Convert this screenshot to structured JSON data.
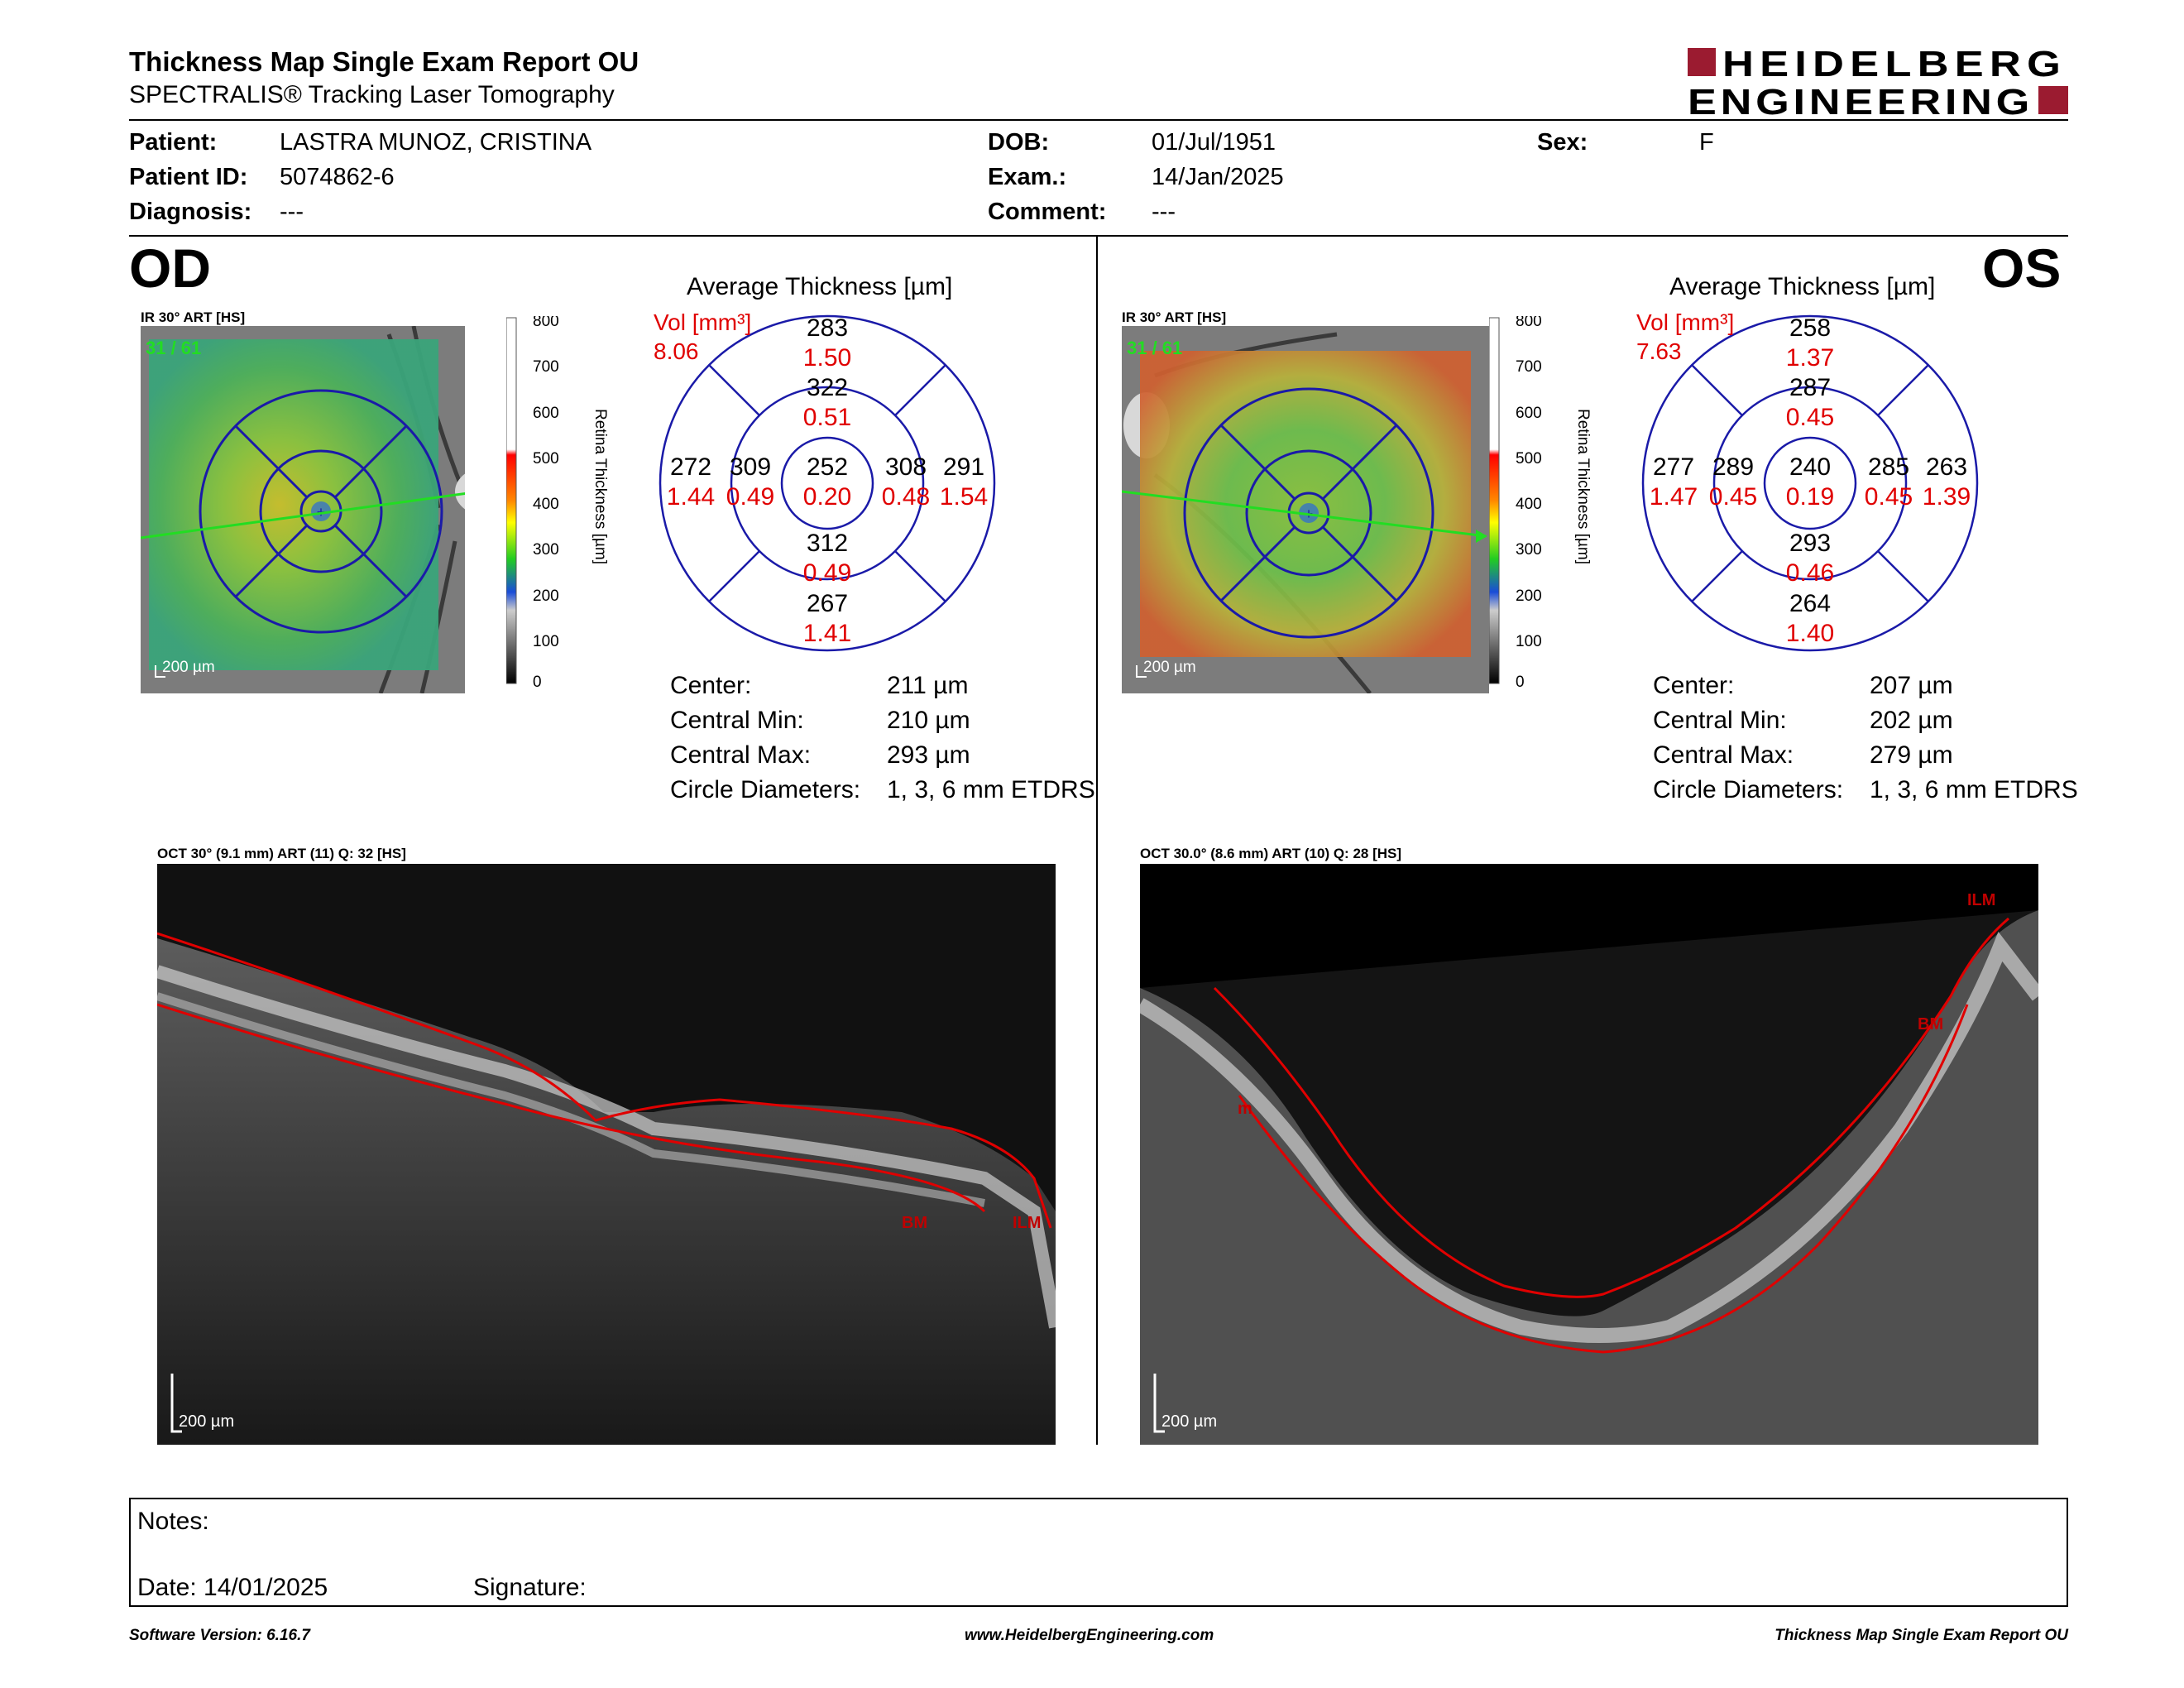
{
  "header": {
    "title": "Thickness Map Single Exam Report OU",
    "subtitle": "SPECTRALIS® Tracking Laser Tomography",
    "logo_line1": "HEIDELBERG",
    "logo_line2": "ENGINEERING",
    "logo_color": "#9b1b30"
  },
  "patient": {
    "patient_label": "Patient:",
    "patient_value": "LASTRA MUNOZ, CRISTINA",
    "id_label": "Patient ID:",
    "id_value": "5074862-6",
    "diagnosis_label": "Diagnosis:",
    "diagnosis_value": "---",
    "dob_label": "DOB:",
    "dob_value": "01/Jul/1951",
    "exam_label": "Exam.:",
    "exam_value": "14/Jan/2025",
    "comment_label": "Comment:",
    "comment_value": "---",
    "sex_label": "Sex:",
    "sex_value": "F"
  },
  "od": {
    "eye_label": "OD",
    "ir_title": "IR 30° ART [HS]",
    "scan_counter": "31 / 61",
    "scale_text": "200 µm",
    "colorbar_ticks": [
      "800",
      "700",
      "600",
      "500",
      "400",
      "300",
      "200",
      "100",
      "0"
    ],
    "colorbar_label": "Retina Thickness [µm]",
    "avg_title": "Average Thickness [µm]",
    "vol_label": "Vol [mm³]",
    "vol_value": "8.06",
    "grid": {
      "center": {
        "t": "252",
        "v": "0.20"
      },
      "inner_top": {
        "t": "322",
        "v": "0.51"
      },
      "inner_bottom": {
        "t": "312",
        "v": "0.49"
      },
      "inner_left": {
        "t": "309",
        "v": "0.49"
      },
      "inner_right": {
        "t": "308",
        "v": "0.48"
      },
      "outer_top": {
        "t": "283",
        "v": "1.50"
      },
      "outer_bottom": {
        "t": "267",
        "v": "1.41"
      },
      "outer_left": {
        "t": "272",
        "v": "1.44"
      },
      "outer_right": {
        "t": "291",
        "v": "1.54"
      }
    },
    "stats": {
      "center_label": "Center:",
      "center_value": "211 µm",
      "min_label": "Central Min:",
      "min_value": "210 µm",
      "max_label": "Central Max:",
      "max_value": "293 µm",
      "diam_label": "Circle Diameters:",
      "diam_value": "1, 3, 6 mm ETDRS"
    },
    "oct_title": "OCT 30° (9.1 mm) ART (11) Q: 32 [HS]",
    "oct_scale": "200 µm",
    "oct_labels": {
      "bm": "BM",
      "ilm": "ILM"
    }
  },
  "os": {
    "eye_label": "OS",
    "ir_title": "IR 30° ART [HS]",
    "scan_counter": "31 / 61",
    "scale_text": "200 µm",
    "colorbar_ticks": [
      "800",
      "700",
      "600",
      "500",
      "400",
      "300",
      "200",
      "100",
      "0"
    ],
    "colorbar_label": "Retina Thickness [µm]",
    "avg_title": "Average Thickness [µm]",
    "vol_label": "Vol [mm³]",
    "vol_value": "7.63",
    "grid": {
      "center": {
        "t": "240",
        "v": "0.19"
      },
      "inner_top": {
        "t": "287",
        "v": "0.45"
      },
      "inner_bottom": {
        "t": "293",
        "v": "0.46"
      },
      "inner_left": {
        "t": "289",
        "v": "0.45"
      },
      "inner_right": {
        "t": "285",
        "v": "0.45"
      },
      "outer_top": {
        "t": "258",
        "v": "1.37"
      },
      "outer_bottom": {
        "t": "264",
        "v": "1.40"
      },
      "outer_left": {
        "t": "277",
        "v": "1.47"
      },
      "outer_right": {
        "t": "263",
        "v": "1.39"
      }
    },
    "stats": {
      "center_label": "Center:",
      "center_value": "207 µm",
      "min_label": "Central Min:",
      "min_value": "202 µm",
      "max_label": "Central Max:",
      "max_value": "279 µm",
      "diam_label": "Circle Diameters:",
      "diam_value": "1, 3, 6 mm ETDRS"
    },
    "oct_title": "OCT 30.0° (8.6 mm) ART (10) Q: 28 [HS]",
    "oct_scale": "200 µm",
    "oct_labels": {
      "bm": "BM",
      "ilm": "ILM",
      "m": "m"
    }
  },
  "notes": {
    "notes_label": "Notes:",
    "date_label": "Date: 14/01/2025",
    "signature_label": "Signature:"
  },
  "footer": {
    "software": "Software Version: 6.16.7",
    "website": "www.HeidelbergEngineering.com",
    "report_name": "Thickness Map Single Exam Report OU"
  },
  "colors": {
    "circle_blue": "#1a1aa8",
    "value_red": "#e00000",
    "scan_green": "#22dd22"
  }
}
